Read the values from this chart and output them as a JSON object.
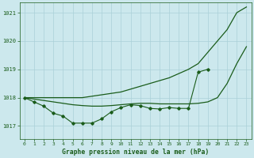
{
  "background_color": "#cce8ed",
  "grid_color": "#aad0d8",
  "line_color": "#1a5c1a",
  "xlabel": "Graphe pression niveau de la mer (hPa)",
  "tick_color": "#1a5c1a",
  "xlim_min": -0.5,
  "xlim_max": 23.5,
  "ylim_min": 1016.55,
  "ylim_max": 1021.35,
  "yticks": [
    1017,
    1018,
    1019,
    1020,
    1021
  ],
  "xticks": [
    0,
    1,
    2,
    3,
    4,
    5,
    6,
    7,
    8,
    9,
    10,
    11,
    12,
    13,
    14,
    15,
    16,
    17,
    18,
    19,
    20,
    21,
    22,
    23
  ],
  "line_smooth_upper": [
    1018.0,
    1018.0,
    1018.0,
    1018.0,
    1018.0,
    1018.0,
    1018.0,
    1018.05,
    1018.1,
    1018.15,
    1018.2,
    1018.3,
    1018.4,
    1018.5,
    1018.6,
    1018.7,
    1018.85,
    1019.0,
    1019.2,
    1019.6,
    1020.0,
    1020.4,
    1021.0,
    1021.2
  ],
  "line_smooth_lower": [
    1018.0,
    1017.95,
    1017.9,
    1017.85,
    1017.8,
    1017.75,
    1017.72,
    1017.7,
    1017.7,
    1017.72,
    1017.75,
    1017.78,
    1017.8,
    1017.8,
    1017.78,
    1017.78,
    1017.78,
    1017.78,
    1017.8,
    1017.85,
    1018.0,
    1018.5,
    1019.2,
    1019.8
  ],
  "line_jagged": [
    1018.0,
    1017.85,
    1017.7,
    1017.45,
    1017.35,
    1017.1,
    1017.1,
    1017.1,
    1017.25,
    1017.5,
    1017.65,
    1017.75,
    1017.72,
    1017.62,
    1017.6,
    1017.65,
    1017.62,
    1017.62,
    1018.9,
    1019.0,
    null,
    null,
    null,
    null
  ]
}
